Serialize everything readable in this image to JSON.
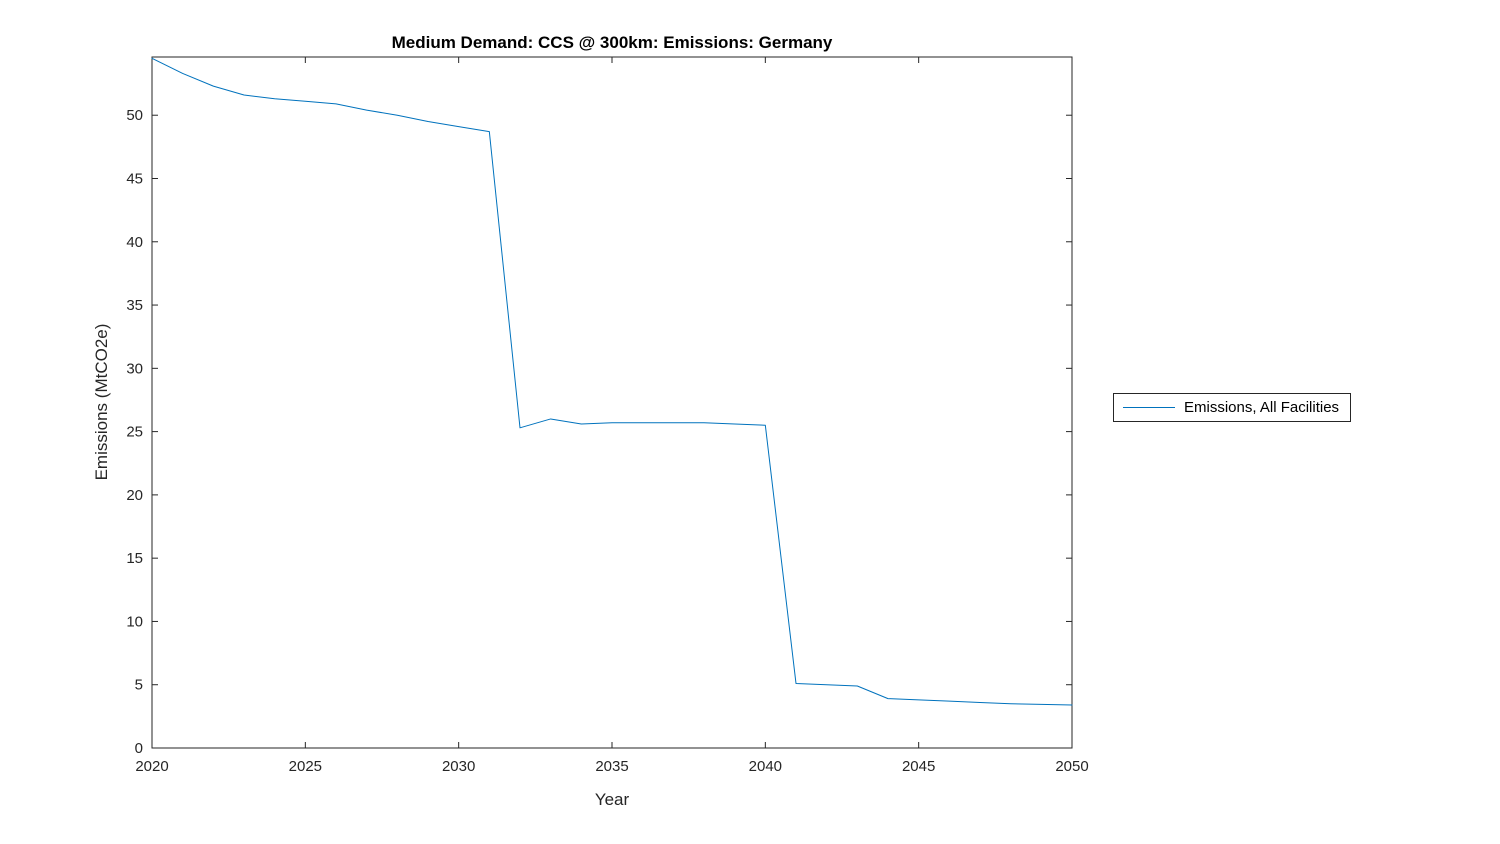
{
  "figure": {
    "background": "#ffffff",
    "axis_color": "#262626"
  },
  "chart_data": {
    "type": "line",
    "title": "Medium Demand: CCS @ 300km: Emissions: Germany",
    "xlabel": "Year",
    "ylabel": "Emissions (MtCO2e)",
    "xlim": [
      2020,
      2050
    ],
    "ylim": [
      0,
      54.6
    ],
    "x_ticks": [
      2020,
      2025,
      2030,
      2035,
      2040,
      2045,
      2050
    ],
    "y_ticks": [
      0,
      5,
      10,
      15,
      20,
      25,
      30,
      35,
      40,
      45,
      50
    ],
    "grid": false,
    "legend": {
      "position": "right-outside",
      "entries": [
        {
          "label": "Emissions, All Facilities",
          "color": "#0072BD"
        }
      ]
    },
    "series": [
      {
        "name": "Emissions, All Facilities",
        "color": "#0072BD",
        "x": [
          2020,
          2021,
          2022,
          2023,
          2024,
          2025,
          2026,
          2027,
          2028,
          2029,
          2030,
          2031,
          2032,
          2033,
          2034,
          2035,
          2036,
          2037,
          2038,
          2039,
          2040,
          2041,
          2042,
          2043,
          2044,
          2045,
          2046,
          2047,
          2048,
          2049,
          2050
        ],
        "y": [
          54.5,
          53.3,
          52.3,
          51.6,
          51.3,
          51.1,
          50.9,
          50.4,
          50.0,
          49.5,
          49.1,
          48.7,
          25.3,
          26.0,
          25.6,
          25.7,
          25.7,
          25.7,
          25.7,
          25.6,
          25.5,
          5.1,
          5.0,
          4.9,
          3.9,
          3.8,
          3.7,
          3.6,
          3.5,
          3.45,
          3.4
        ]
      }
    ]
  }
}
